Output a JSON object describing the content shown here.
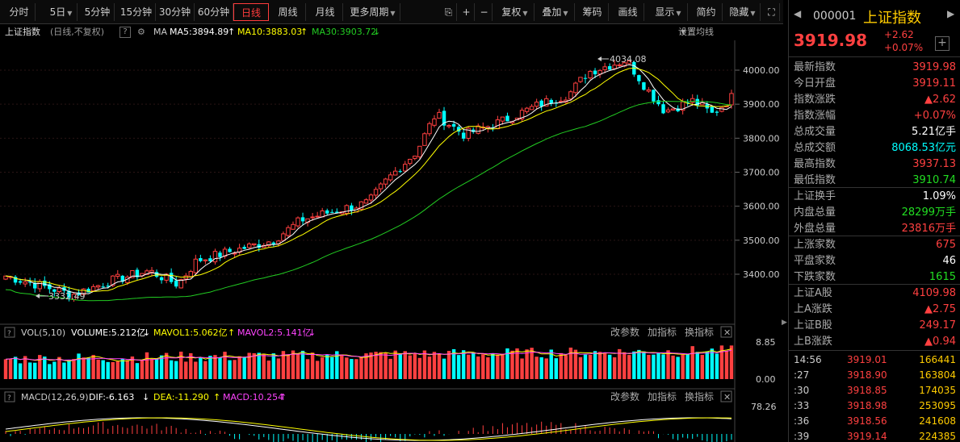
{
  "toolbar": {
    "periods": [
      "分时",
      "5日",
      "5分钟",
      "15分钟",
      "30分钟",
      "60分钟",
      "日线",
      "周线",
      "月线",
      "更多周期"
    ],
    "active_period": "日线",
    "tools": [
      "复权",
      "叠加",
      "筹码",
      "画线",
      "显示",
      "简约",
      "隐藏"
    ]
  },
  "header": {
    "name": "上证指数",
    "mode": "(日线,不复权)",
    "ma_label": "MA",
    "ma5": "MA5:3894.89",
    "ma10": "MA10:3883.03",
    "ma30": "MA30:3903.72",
    "setting": "设置均线"
  },
  "price_axis": [
    "4000.00",
    "3900.00",
    "3800.00",
    "3700.00",
    "3600.00",
    "3500.00",
    "3400.00"
  ],
  "annotations": {
    "high": "4034.08",
    "low": "3332.49"
  },
  "volume_panel": {
    "title": "VOL(5,10)",
    "volume": "VOLUME:5.212亿",
    "mavol1": "MAVOL1:5.062亿",
    "mavol2": "MAVOL2:5.141亿",
    "axis_top": "8.85",
    "axis_bottom": "0.00"
  },
  "macd_panel": {
    "title": "MACD(12,26,9)",
    "dif": "DIF:-6.163",
    "dea": "DEA:-11.290",
    "macd": "MACD:10.254",
    "axis_top": "78.26"
  },
  "panel_buttons": [
    "改参数",
    "加指标",
    "换指标"
  ],
  "colors": {
    "up": "#ff4040",
    "down": "#00ffff",
    "ma5": "#ffffff",
    "ma10": "#ffff00",
    "ma30": "#22cc22",
    "accent": "#ffcc00"
  },
  "quote": {
    "code": "000001",
    "name": "上证指数",
    "price": "3919.98",
    "change": "+2.62",
    "pct": "+0.07%",
    "stats": [
      {
        "label": "最新指数",
        "value": "3919.98",
        "color": "#ff4040"
      },
      {
        "label": "今日开盘",
        "value": "3919.11",
        "color": "#ff4040"
      },
      {
        "label": "指数涨跌",
        "value": "▲2.62",
        "color": "#ff4040"
      },
      {
        "label": "指数涨幅",
        "value": "+0.07%",
        "color": "#ff4040"
      },
      {
        "label": "总成交量",
        "value": "5.21亿手",
        "color": "#ffffff"
      },
      {
        "label": "总成交额",
        "value": "8068.53亿元",
        "color": "#00ffff"
      },
      {
        "label": "最高指数",
        "value": "3937.13",
        "color": "#ff4040"
      },
      {
        "label": "最低指数",
        "value": "3910.74",
        "color": "#22dd22"
      },
      {
        "label": "上证换手",
        "value": "1.09%",
        "color": "#ffffff"
      },
      {
        "label": "内盘总量",
        "value": "28299万手",
        "color": "#22dd22"
      },
      {
        "label": "外盘总量",
        "value": "23816万手",
        "color": "#ff4040"
      },
      {
        "label": "上涨家数",
        "value": "675",
        "color": "#ff4040"
      },
      {
        "label": "平盘家数",
        "value": "46",
        "color": "#ffffff"
      },
      {
        "label": "下跌家数",
        "value": "1615",
        "color": "#22dd22"
      },
      {
        "label": "上证A股",
        "value": "4109.98",
        "color": "#ff4040"
      },
      {
        "label": "上A涨跌",
        "value": "▲2.75",
        "color": "#ff4040"
      },
      {
        "label": "上证B股",
        "value": "249.17",
        "color": "#ff4040"
      },
      {
        "label": "上B涨跌",
        "value": "▲0.94",
        "color": "#ff4040"
      }
    ],
    "ticks": [
      {
        "time": "14:56",
        "price": "3919.01",
        "vol": "166441"
      },
      {
        "time": ":27",
        "price": "3918.90",
        "vol": "163804"
      },
      {
        "time": ":30",
        "price": "3918.85",
        "vol": "174035"
      },
      {
        "time": ":33",
        "price": "3918.98",
        "vol": "253095"
      },
      {
        "time": ":36",
        "price": "3918.56",
        "vol": "241608"
      },
      {
        "time": ":39",
        "price": "3919.14",
        "vol": "224385"
      }
    ]
  }
}
